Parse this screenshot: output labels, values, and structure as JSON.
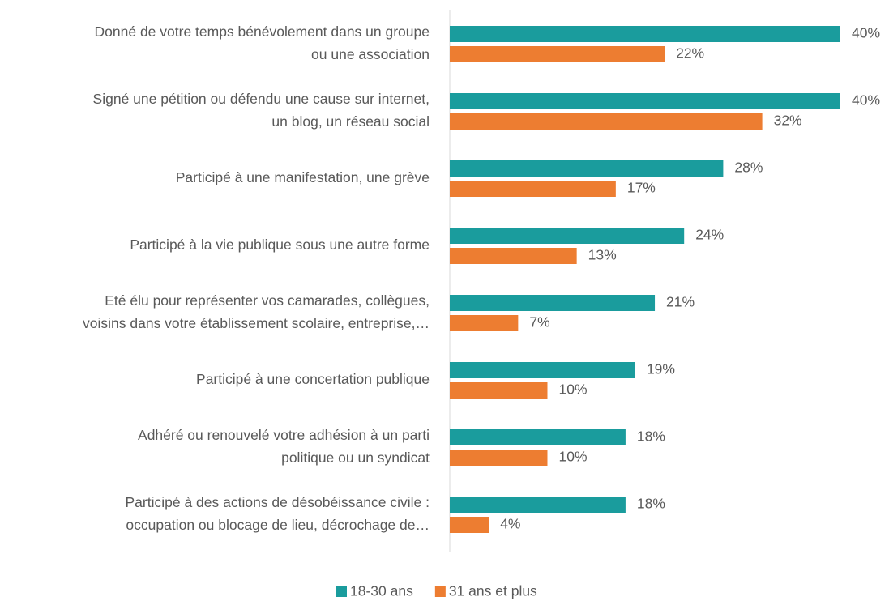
{
  "chart_data": {
    "type": "bar",
    "orientation": "horizontal",
    "categories": [
      [
        "Donné de votre temps bénévolement dans un groupe",
        "ou une association"
      ],
      [
        "Signé une pétition ou défendu une cause sur internet,",
        "un blog, un réseau social"
      ],
      [
        "Participé à une manifestation, une grève"
      ],
      [
        "Participé à la vie publique sous une autre forme"
      ],
      [
        "Eté élu pour représenter vos camarades, collègues,",
        "voisins dans votre établissement scolaire, entreprise,…"
      ],
      [
        "Participé à une concertation publique"
      ],
      [
        "Adhéré ou renouvelé votre adhésion à un parti",
        "politique ou un syndicat"
      ],
      [
        "Participé à des actions de désobéissance civile :",
        "occupation ou blocage de lieu, décrochage de…"
      ]
    ],
    "series": [
      {
        "name": "18-30 ans",
        "color": "#1a9c9d",
        "values": [
          40,
          40,
          28,
          24,
          21,
          19,
          18,
          18
        ],
        "value_labels": [
          "40%",
          "40%",
          "28%",
          "24%",
          "21%",
          "19%",
          "18%",
          "18%"
        ]
      },
      {
        "name": "31 ans et plus",
        "color": "#ed7d31",
        "values": [
          22,
          32,
          17,
          13,
          7,
          10,
          10,
          4
        ],
        "value_labels": [
          "22%",
          "32%",
          "17%",
          "13%",
          "7%",
          "10%",
          "10%",
          "4%"
        ]
      }
    ],
    "legend": "bottom"
  }
}
